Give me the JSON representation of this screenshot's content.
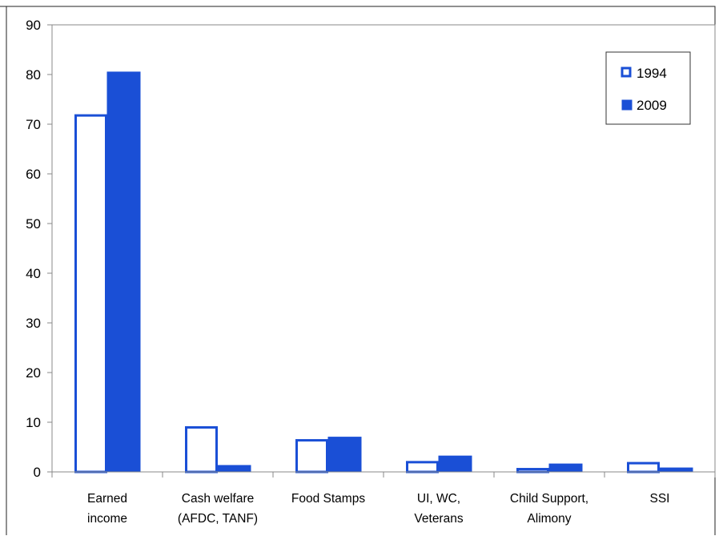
{
  "chart_data": {
    "type": "bar",
    "title": "",
    "xlabel": "",
    "ylabel": "",
    "ylim": [
      0,
      90
    ],
    "yticks": [
      0,
      10,
      20,
      30,
      40,
      50,
      60,
      70,
      80,
      90
    ],
    "grid": false,
    "legend_position": "top-right",
    "categories": [
      [
        "Earned",
        "income"
      ],
      [
        "Cash welfare",
        "(AFDC, TANF)"
      ],
      [
        "Food Stamps"
      ],
      [
        "UI, WC,",
        "Veterans"
      ],
      [
        "Child Support,",
        "Alimony"
      ],
      [
        "SSI"
      ]
    ],
    "series": [
      {
        "name": "1994",
        "style": "outline",
        "color": "#1a4fd6",
        "values": [
          72,
          9.2,
          6.6,
          2.2,
          0.8,
          2.0
        ]
      },
      {
        "name": "2009",
        "style": "filled",
        "color": "#1a4fd6",
        "values": [
          80.5,
          1.3,
          7.0,
          3.2,
          1.6,
          0.8
        ]
      }
    ]
  }
}
